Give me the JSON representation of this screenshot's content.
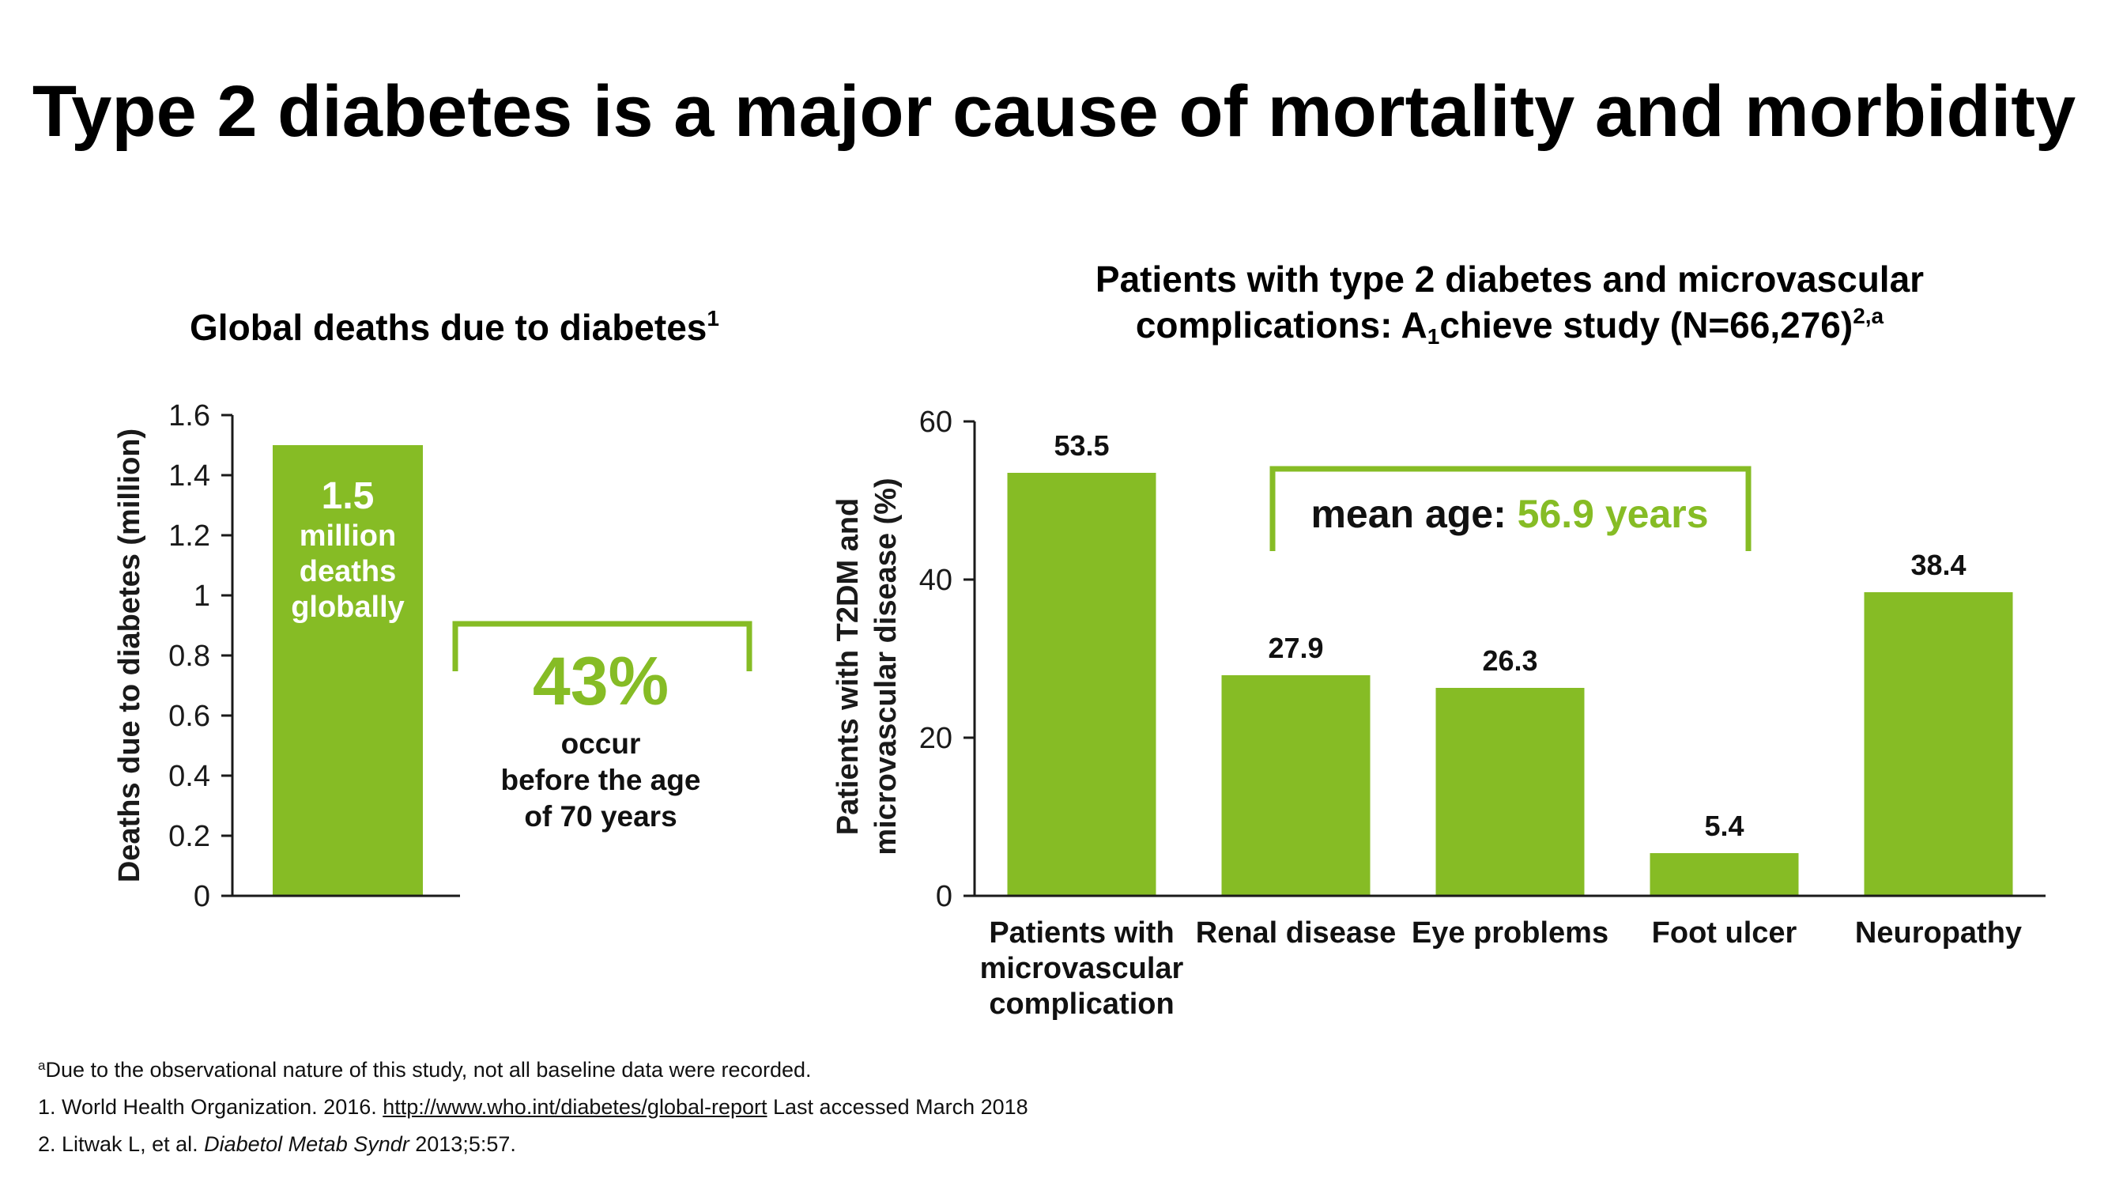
{
  "slide": {
    "title": "Type 2 diabetes is a major cause of mortality and morbidity"
  },
  "colors": {
    "bar": "#86bc25",
    "accent_text": "#86bc25",
    "axis": "#1a1a1a"
  },
  "left_chart": {
    "title": "Global deaths due to diabetes",
    "title_sup": "1",
    "bar_label_value": "1.5",
    "bar_label_text": [
      "million",
      "deaths",
      "globally"
    ],
    "callout_percent": "43%",
    "callout_text": [
      "occur",
      "before the age",
      "of 70 years"
    ]
  },
  "right_chart": {
    "title_line1": "Patients with type 2 diabetes and microvascular",
    "title_line2_pre": "complications: A",
    "title_line2_sub": "1",
    "title_line2_post": "chieve study (N=66,276)",
    "title_line2_sup": "2,a",
    "callout_label": "mean age: ",
    "callout_value": "56.9 years"
  },
  "chart_data": [
    {
      "type": "bar",
      "ylabel": "Deaths due to diabetes (million)",
      "ylim": [
        0,
        1.6
      ],
      "yticks": [
        "0",
        "0.2",
        "0.4",
        "0.6",
        "0.8",
        "1",
        "1.2",
        "1.4",
        "1.6"
      ],
      "categories": [
        ""
      ],
      "values": [
        1.5
      ],
      "grid": false
    },
    {
      "type": "bar",
      "ylabel_lines": [
        "Patients with T2DM and",
        "microvascular disease (%)"
      ],
      "ylim": [
        0,
        60
      ],
      "yticks": [
        "0",
        "20",
        "40",
        "60"
      ],
      "categories": [
        [
          "Patients with",
          "microvascular",
          "complication"
        ],
        [
          "Renal disease"
        ],
        [
          "Eye problems"
        ],
        [
          "Foot ulcer"
        ],
        [
          "Neuropathy"
        ]
      ],
      "values": [
        53.5,
        27.9,
        26.3,
        5.4,
        38.4
      ],
      "data_labels": [
        "53.5",
        "27.9",
        "26.3",
        "5.4",
        "38.4"
      ],
      "grid": false
    }
  ],
  "footnotes": {
    "a_marker": "a",
    "a_text": "Due to the observational nature of this study, not all baseline data were recorded.",
    "ref1_pre": "1. World Health Organization. 2016. ",
    "ref1_link": "http://www.who.int/diabetes/global-report",
    "ref1_post": " Last accessed March 2018",
    "ref2_pre": "2. Litwak L, et al. ",
    "ref2_journal": "Diabetol Metab Syndr",
    "ref2_post": " 2013;5:57."
  }
}
